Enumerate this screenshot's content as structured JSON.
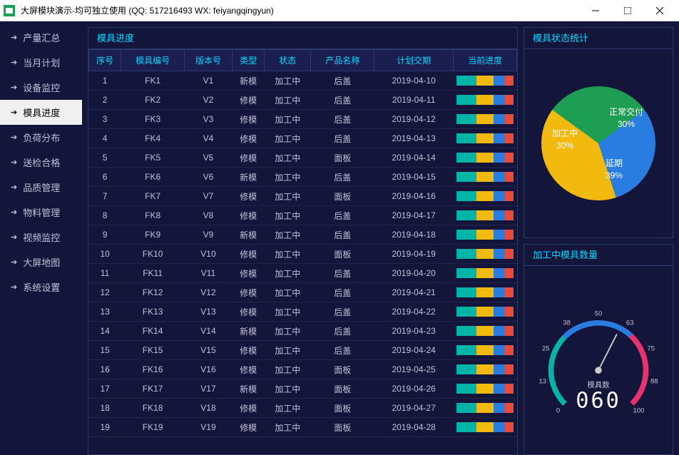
{
  "window": {
    "title": "大屏模块演示-均可独立使用 (QQ: 517216493  WX: feiyangqingyun)"
  },
  "sidebar": {
    "items": [
      {
        "label": "产量汇总",
        "active": false
      },
      {
        "label": "当月计划",
        "active": false
      },
      {
        "label": "设备监控",
        "active": false
      },
      {
        "label": "模具进度",
        "active": true
      },
      {
        "label": "负荷分布",
        "active": false
      },
      {
        "label": "送检合格",
        "active": false
      },
      {
        "label": "品质管理",
        "active": false
      },
      {
        "label": "物料管理",
        "active": false
      },
      {
        "label": "视频监控",
        "active": false
      },
      {
        "label": "大屏地图",
        "active": false
      },
      {
        "label": "系统设置",
        "active": false
      }
    ]
  },
  "table": {
    "title": "模具进度",
    "headers": [
      "序号",
      "模具编号",
      "版本号",
      "类型",
      "状态",
      "产品名称",
      "计划交期",
      "当前进度"
    ],
    "rows": [
      {
        "idx": "1",
        "code": "FK1",
        "ver": "V1",
        "type": "新模",
        "status": "加工中",
        "prod": "后盖",
        "date": "2019-04-10"
      },
      {
        "idx": "2",
        "code": "FK2",
        "ver": "V2",
        "type": "修模",
        "status": "加工中",
        "prod": "后盖",
        "date": "2019-04-11"
      },
      {
        "idx": "3",
        "code": "FK3",
        "ver": "V3",
        "type": "修模",
        "status": "加工中",
        "prod": "后盖",
        "date": "2019-04-12"
      },
      {
        "idx": "4",
        "code": "FK4",
        "ver": "V4",
        "type": "修模",
        "status": "加工中",
        "prod": "后盖",
        "date": "2019-04-13"
      },
      {
        "idx": "5",
        "code": "FK5",
        "ver": "V5",
        "type": "修模",
        "status": "加工中",
        "prod": "面板",
        "date": "2019-04-14"
      },
      {
        "idx": "6",
        "code": "FK6",
        "ver": "V6",
        "type": "新模",
        "status": "加工中",
        "prod": "后盖",
        "date": "2019-04-15"
      },
      {
        "idx": "7",
        "code": "FK7",
        "ver": "V7",
        "type": "修模",
        "status": "加工中",
        "prod": "面板",
        "date": "2019-04-16"
      },
      {
        "idx": "8",
        "code": "FK8",
        "ver": "V8",
        "type": "修模",
        "status": "加工中",
        "prod": "后盖",
        "date": "2019-04-17"
      },
      {
        "idx": "9",
        "code": "FK9",
        "ver": "V9",
        "type": "新模",
        "status": "加工中",
        "prod": "后盖",
        "date": "2019-04-18"
      },
      {
        "idx": "10",
        "code": "FK10",
        "ver": "V10",
        "type": "修模",
        "status": "加工中",
        "prod": "面板",
        "date": "2019-04-19"
      },
      {
        "idx": "11",
        "code": "FK11",
        "ver": "V11",
        "type": "修模",
        "status": "加工中",
        "prod": "后盖",
        "date": "2019-04-20"
      },
      {
        "idx": "12",
        "code": "FK12",
        "ver": "V12",
        "type": "修模",
        "status": "加工中",
        "prod": "后盖",
        "date": "2019-04-21"
      },
      {
        "idx": "13",
        "code": "FK13",
        "ver": "V13",
        "type": "修模",
        "status": "加工中",
        "prod": "后盖",
        "date": "2019-04-22"
      },
      {
        "idx": "14",
        "code": "FK14",
        "ver": "V14",
        "type": "新模",
        "status": "加工中",
        "prod": "后盖",
        "date": "2019-04-23"
      },
      {
        "idx": "15",
        "code": "FK15",
        "ver": "V15",
        "type": "修模",
        "status": "加工中",
        "prod": "后盖",
        "date": "2019-04-24"
      },
      {
        "idx": "16",
        "code": "FK16",
        "ver": "V16",
        "type": "修模",
        "status": "加工中",
        "prod": "面板",
        "date": "2019-04-25"
      },
      {
        "idx": "17",
        "code": "FK17",
        "ver": "V17",
        "type": "新模",
        "status": "加工中",
        "prod": "面板",
        "date": "2019-04-26"
      },
      {
        "idx": "18",
        "code": "FK18",
        "ver": "V18",
        "type": "修模",
        "status": "加工中",
        "prod": "面板",
        "date": "2019-04-27"
      },
      {
        "idx": "19",
        "code": "FK19",
        "ver": "V19",
        "type": "修模",
        "status": "加工中",
        "prod": "面板",
        "date": "2019-04-28"
      }
    ],
    "progress_colors": [
      "#00b5a7",
      "#f2b90f",
      "#2a7de0",
      "#e84b3c"
    ],
    "progress_widths": [
      35,
      30,
      20,
      15
    ]
  },
  "pie": {
    "title": "模具状态统计",
    "slices": [
      {
        "label": "正常交付",
        "value": "30%",
        "color": "#1e9e52"
      },
      {
        "label": "加工中",
        "value": "30%",
        "color": "#2a7de0"
      },
      {
        "label": "延期",
        "value": "39%",
        "color": "#f2b90f"
      }
    ]
  },
  "gauge": {
    "title": "加工中模具数量",
    "label": "模具数",
    "value": "060",
    "ticks": [
      "0",
      "13",
      "25",
      "38",
      "50",
      "63",
      "75",
      "88",
      "100"
    ],
    "arc_colors": [
      "#00b5a7",
      "#2a7de0",
      "#e8326f"
    ]
  }
}
